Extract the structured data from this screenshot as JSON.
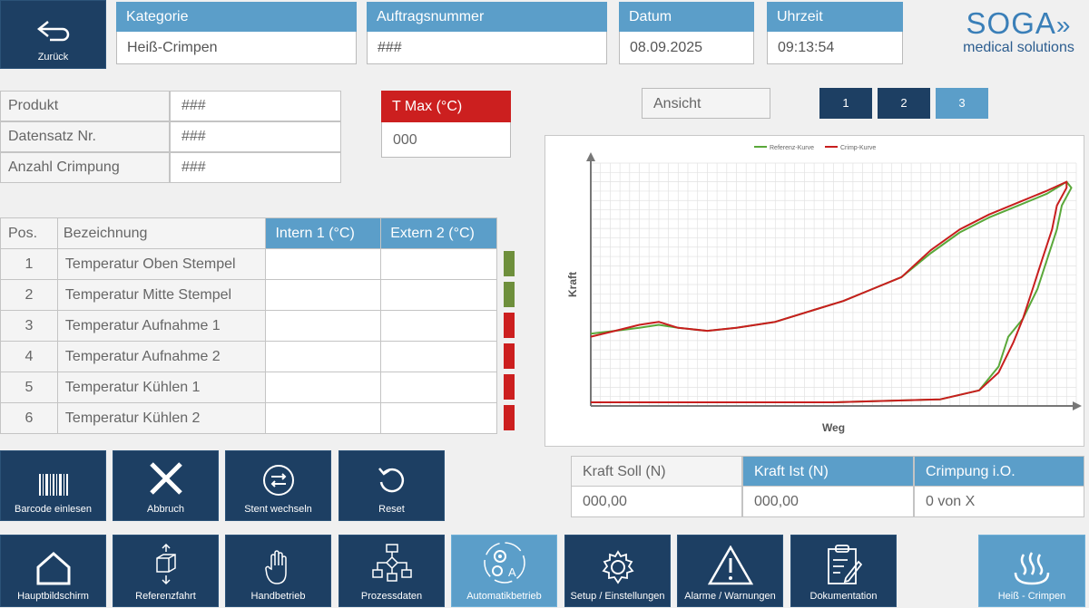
{
  "header": {
    "back_label": "Zurück",
    "kategorie_label": "Kategorie",
    "kategorie_value": "Heiß-Crimpen",
    "auftrag_label": "Auftragsnummer",
    "auftrag_value": "###",
    "datum_label": "Datum",
    "datum_value": "08.09.2025",
    "uhrzeit_label": "Uhrzeit",
    "uhrzeit_value": "09:13:54",
    "logo_brand": "SOGA",
    "logo_sub": "medical solutions"
  },
  "info": {
    "rows": [
      {
        "label": "Produkt",
        "value": "###"
      },
      {
        "label": "Datensatz Nr.",
        "value": "###"
      },
      {
        "label": "Anzahl Crimpung",
        "value": "###"
      }
    ],
    "tmax_label": "T Max (°C)",
    "tmax_value": "000"
  },
  "view": {
    "ansicht_label": "Ansicht",
    "buttons": [
      "1",
      "2",
      "3"
    ],
    "active": "3"
  },
  "temp_table": {
    "headers": [
      "Pos.",
      "Bezeichnung",
      "Intern 1 (°C)",
      "Extern 2 (°C)"
    ],
    "rows": [
      {
        "pos": "1",
        "name": "Temperatur Oben Stempel",
        "status": "ok"
      },
      {
        "pos": "2",
        "name": "Temperatur Mitte Stempel",
        "status": "ok"
      },
      {
        "pos": "3",
        "name": "Temperatur Aufnahme 1",
        "status": "error"
      },
      {
        "pos": "4",
        "name": "Temperatur Aufnahme 2",
        "status": "error"
      },
      {
        "pos": "5",
        "name": "Temperatur Kühlen 1",
        "status": "error"
      },
      {
        "pos": "6",
        "name": "Temperatur Kühlen 2",
        "status": "error"
      }
    ]
  },
  "actions": {
    "barcode": "Barcode einlesen",
    "abbruch": "Abbruch",
    "stent": "Stent wechseln",
    "reset": "Reset"
  },
  "force": {
    "soll_label": "Kraft Soll (N)",
    "soll_value": "000,00",
    "ist_label": "Kraft Ist (N)",
    "ist_value": "000,00",
    "io_label": "Crimpung i.O.",
    "io_value": "0 von X"
  },
  "nav": {
    "items": [
      {
        "label": "Hauptbildschirm",
        "icon": "house-icon"
      },
      {
        "label": "Referenzfahrt",
        "icon": "box-arrows-icon"
      },
      {
        "label": "Handbetrieb",
        "icon": "hand-icon"
      },
      {
        "label": "Prozessdaten",
        "icon": "flowchart-icon"
      },
      {
        "label": "Automatikbetrieb",
        "icon": "gears-auto-icon"
      },
      {
        "label": "Setup / Einstellungen",
        "icon": "gear-icon"
      },
      {
        "label": "Alarme / Warnungen",
        "icon": "warning-icon"
      },
      {
        "label": "Dokumentation",
        "icon": "clipboard-icon"
      }
    ],
    "mode_label": "Heiß - Crimpen"
  },
  "colors": {
    "navy": "#1d3f63",
    "sky": "#5b9ec9",
    "ok": "#6e8f3c",
    "error": "#cc1f1f",
    "reference_curve": "#5aa83a",
    "crimp_curve": "#c81e1e"
  },
  "chart_data": {
    "type": "line",
    "xlabel": "Weg",
    "ylabel": "Kraft",
    "grid": true,
    "legend": "top-center",
    "series": [
      {
        "name": "Referenz-Kurve",
        "color": "#5aa83a",
        "points": [
          [
            0,
            23
          ],
          [
            5,
            24
          ],
          [
            10,
            25
          ],
          [
            14,
            26
          ],
          [
            18,
            25
          ],
          [
            24,
            24
          ],
          [
            30,
            25
          ],
          [
            38,
            27
          ],
          [
            46,
            31
          ],
          [
            52,
            34
          ],
          [
            58,
            38
          ],
          [
            64,
            42
          ],
          [
            70,
            50
          ],
          [
            76,
            57
          ],
          [
            82,
            62
          ],
          [
            88,
            66
          ],
          [
            94,
            70
          ],
          [
            98,
            74
          ],
          [
            99,
            72
          ],
          [
            97,
            66
          ],
          [
            96,
            58
          ],
          [
            94,
            48
          ],
          [
            92,
            38
          ],
          [
            89,
            28
          ],
          [
            86,
            22
          ],
          [
            84,
            12
          ],
          [
            80,
            4
          ],
          [
            72,
            1
          ],
          [
            50,
            0
          ],
          [
            0,
            0
          ]
        ]
      },
      {
        "name": "Crimp-Kurve",
        "color": "#c81e1e",
        "points": [
          [
            0,
            22
          ],
          [
            5,
            24
          ],
          [
            10,
            26
          ],
          [
            14,
            27
          ],
          [
            18,
            25
          ],
          [
            24,
            24
          ],
          [
            30,
            25
          ],
          [
            38,
            27
          ],
          [
            46,
            31
          ],
          [
            52,
            34
          ],
          [
            58,
            38
          ],
          [
            64,
            42
          ],
          [
            70,
            51
          ],
          [
            76,
            58
          ],
          [
            82,
            63
          ],
          [
            88,
            67
          ],
          [
            94,
            71
          ],
          [
            98,
            74
          ],
          [
            98,
            72
          ],
          [
            96,
            66
          ],
          [
            95,
            58
          ],
          [
            93,
            48
          ],
          [
            91,
            38
          ],
          [
            89,
            28
          ],
          [
            87,
            20
          ],
          [
            84,
            10
          ],
          [
            80,
            4
          ],
          [
            72,
            1
          ],
          [
            50,
            0
          ],
          [
            0,
            0
          ]
        ]
      }
    ]
  }
}
